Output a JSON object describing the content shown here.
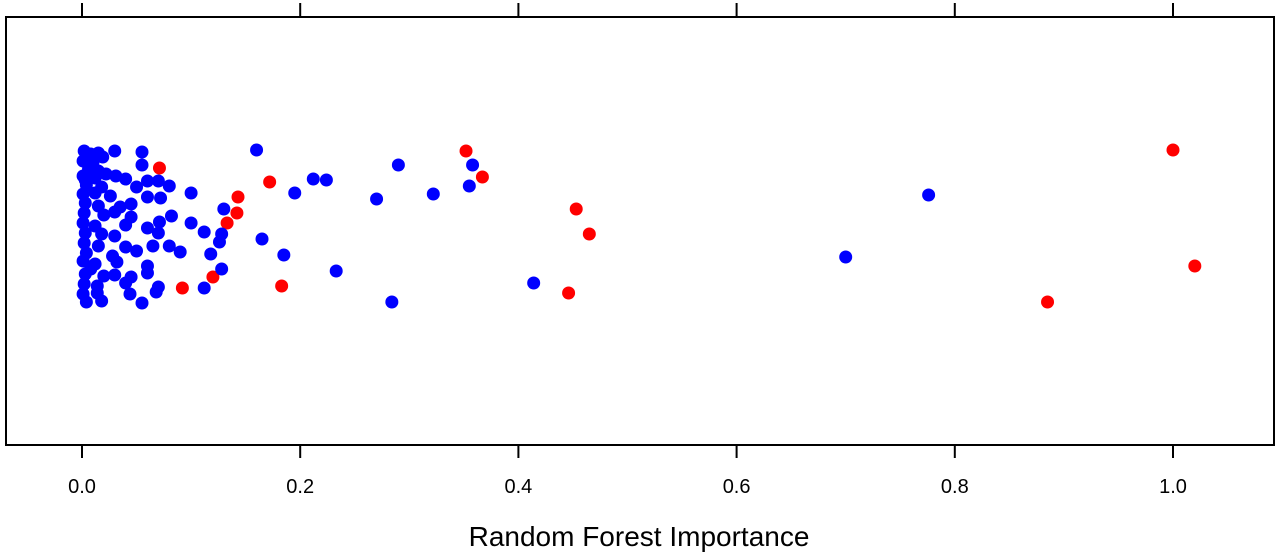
{
  "chart_data": {
    "type": "scatter",
    "title": "",
    "xlabel": "Random Forest Importance",
    "ylabel": "",
    "xlim": [
      -0.035,
      1.1
    ],
    "x_ticks": [
      0.0,
      0.2,
      0.4,
      0.6,
      0.8,
      1.0
    ],
    "x_tick_labels": [
      "0.0",
      "0.2",
      "0.4",
      "0.6",
      "0.8",
      "1.0"
    ],
    "top_axis_ticks": true,
    "grid": false,
    "legend": "none",
    "y_jitter": "vertical random jitter around a single level",
    "series": [
      {
        "color": "#ff0000",
        "points": [
          {
            "x": 0.071,
            "y": 0.63
          },
          {
            "x": 0.352,
            "y": 0.8
          },
          {
            "x": 0.367,
            "y": 0.54
          },
          {
            "x": 0.172,
            "y": 0.49
          },
          {
            "x": 0.143,
            "y": 0.34
          },
          {
            "x": 0.142,
            "y": 0.18
          },
          {
            "x": 0.133,
            "y": 0.08
          },
          {
            "x": 0.453,
            "y": 0.22
          },
          {
            "x": 0.465,
            "y": -0.03
          },
          {
            "x": 0.12,
            "y": -0.46
          },
          {
            "x": 0.183,
            "y": -0.55
          },
          {
            "x": 0.092,
            "y": -0.57
          },
          {
            "x": 0.446,
            "y": -0.62
          },
          {
            "x": 1.0,
            "y": 0.81
          },
          {
            "x": 1.02,
            "y": -0.35
          },
          {
            "x": 0.885,
            "y": -0.71
          }
        ]
      },
      {
        "color": "#0000ff",
        "points": [
          {
            "x": 0.002,
            "y": 0.8
          },
          {
            "x": 0.008,
            "y": 0.77
          },
          {
            "x": 0.015,
            "y": 0.78
          },
          {
            "x": 0.019,
            "y": 0.74
          },
          {
            "x": 0.03,
            "y": 0.8
          },
          {
            "x": 0.055,
            "y": 0.79
          },
          {
            "x": 0.001,
            "y": 0.7
          },
          {
            "x": 0.01,
            "y": 0.68
          },
          {
            "x": 0.006,
            "y": 0.62
          },
          {
            "x": 0.015,
            "y": 0.6
          },
          {
            "x": 0.055,
            "y": 0.66
          },
          {
            "x": 0.001,
            "y": 0.55
          },
          {
            "x": 0.012,
            "y": 0.53
          },
          {
            "x": 0.022,
            "y": 0.57
          },
          {
            "x": 0.031,
            "y": 0.55
          },
          {
            "x": 0.04,
            "y": 0.52
          },
          {
            "x": 0.06,
            "y": 0.5
          },
          {
            "x": 0.07,
            "y": 0.5
          },
          {
            "x": 0.004,
            "y": 0.46
          },
          {
            "x": 0.018,
            "y": 0.44
          },
          {
            "x": 0.05,
            "y": 0.44
          },
          {
            "x": 0.08,
            "y": 0.45
          },
          {
            "x": 0.001,
            "y": 0.37
          },
          {
            "x": 0.012,
            "y": 0.38
          },
          {
            "x": 0.026,
            "y": 0.35
          },
          {
            "x": 0.06,
            "y": 0.34
          },
          {
            "x": 0.072,
            "y": 0.33
          },
          {
            "x": 0.1,
            "y": 0.38
          },
          {
            "x": 0.003,
            "y": 0.28
          },
          {
            "x": 0.015,
            "y": 0.25
          },
          {
            "x": 0.035,
            "y": 0.24
          },
          {
            "x": 0.045,
            "y": 0.27
          },
          {
            "x": 0.13,
            "y": 0.22
          },
          {
            "x": 0.002,
            "y": 0.18
          },
          {
            "x": 0.02,
            "y": 0.16
          },
          {
            "x": 0.03,
            "y": 0.19
          },
          {
            "x": 0.045,
            "y": 0.14
          },
          {
            "x": 0.082,
            "y": 0.15
          },
          {
            "x": 0.001,
            "y": 0.08
          },
          {
            "x": 0.012,
            "y": 0.05
          },
          {
            "x": 0.04,
            "y": 0.06
          },
          {
            "x": 0.06,
            "y": 0.03
          },
          {
            "x": 0.071,
            "y": 0.09
          },
          {
            "x": 0.1,
            "y": 0.08
          },
          {
            "x": 0.003,
            "y": -0.02
          },
          {
            "x": 0.018,
            "y": -0.03
          },
          {
            "x": 0.03,
            "y": -0.05
          },
          {
            "x": 0.07,
            "y": -0.02
          },
          {
            "x": 0.112,
            "y": -0.01
          },
          {
            "x": 0.128,
            "y": -0.03
          },
          {
            "x": 0.165,
            "y": -0.08
          },
          {
            "x": 0.002,
            "y": -0.12
          },
          {
            "x": 0.015,
            "y": -0.15
          },
          {
            "x": 0.04,
            "y": -0.16
          },
          {
            "x": 0.065,
            "y": -0.15
          },
          {
            "x": 0.08,
            "y": -0.15
          },
          {
            "x": 0.126,
            "y": -0.11
          },
          {
            "x": 0.004,
            "y": -0.22
          },
          {
            "x": 0.028,
            "y": -0.25
          },
          {
            "x": 0.05,
            "y": -0.2
          },
          {
            "x": 0.09,
            "y": -0.21
          },
          {
            "x": 0.118,
            "y": -0.23
          },
          {
            "x": 0.185,
            "y": -0.24
          },
          {
            "x": 0.001,
            "y": -0.3
          },
          {
            "x": 0.012,
            "y": -0.33
          },
          {
            "x": 0.032,
            "y": -0.31
          },
          {
            "x": 0.06,
            "y": -0.35
          },
          {
            "x": 0.128,
            "y": -0.38
          },
          {
            "x": 0.233,
            "y": -0.4
          },
          {
            "x": 0.003,
            "y": -0.43
          },
          {
            "x": 0.02,
            "y": -0.45
          },
          {
            "x": 0.03,
            "y": -0.44
          },
          {
            "x": 0.045,
            "y": -0.46
          },
          {
            "x": 0.06,
            "y": -0.42
          },
          {
            "x": 0.002,
            "y": -0.53
          },
          {
            "x": 0.014,
            "y": -0.55
          },
          {
            "x": 0.04,
            "y": -0.52
          },
          {
            "x": 0.07,
            "y": -0.56
          },
          {
            "x": 0.112,
            "y": -0.57
          },
          {
            "x": 0.001,
            "y": -0.63
          },
          {
            "x": 0.014,
            "y": -0.62
          },
          {
            "x": 0.044,
            "y": -0.63
          },
          {
            "x": 0.068,
            "y": -0.61
          },
          {
            "x": 0.004,
            "y": -0.71
          },
          {
            "x": 0.018,
            "y": -0.7
          },
          {
            "x": 0.055,
            "y": -0.72
          },
          {
            "x": 0.003,
            "y": 0.51
          },
          {
            "x": 0.008,
            "y": -0.38
          },
          {
            "x": 0.16,
            "y": 0.81
          },
          {
            "x": 0.29,
            "y": 0.66
          },
          {
            "x": 0.212,
            "y": 0.52
          },
          {
            "x": 0.224,
            "y": 0.51
          },
          {
            "x": 0.195,
            "y": 0.38
          },
          {
            "x": 0.27,
            "y": 0.32
          },
          {
            "x": 0.322,
            "y": 0.37
          },
          {
            "x": 0.355,
            "y": 0.45
          },
          {
            "x": 0.358,
            "y": 0.66
          },
          {
            "x": 0.414,
            "y": -0.52
          },
          {
            "x": 0.284,
            "y": -0.71
          },
          {
            "x": 0.7,
            "y": -0.26
          },
          {
            "x": 0.776,
            "y": 0.36
          }
        ]
      }
    ]
  }
}
